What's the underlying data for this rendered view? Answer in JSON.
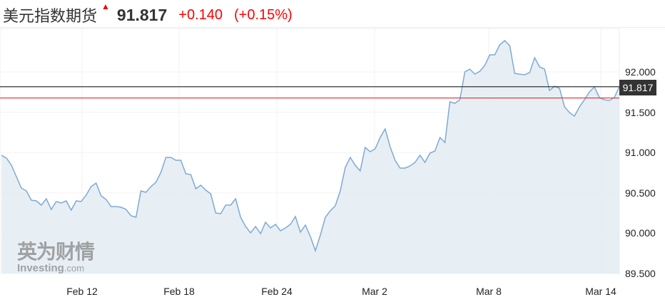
{
  "header": {
    "name": "美元指数期货",
    "arrow_icon": "up-arrow",
    "price": "91.817",
    "change": "+0.140",
    "change_pct": "(+0.15%)",
    "up_color": "#ff0000"
  },
  "watermark": {
    "cn": "英为财情",
    "en": "Investing",
    ".com": ".com"
  },
  "chart_data": {
    "type": "area",
    "x_ticks": [
      "Feb 12",
      "Feb 18",
      "Feb 24",
      "Mar 2",
      "Mar 8",
      "Mar 14"
    ],
    "y_ticks": [
      "92.000",
      "91.500",
      "91.000",
      "90.500",
      "90.000",
      "89.500"
    ],
    "ylim": [
      89.5,
      92.5
    ],
    "last_price": 91.817,
    "last_label": "91.817",
    "previous_close": 91.677,
    "line_color": "#7fa9d4",
    "fill_color": "#e3ecf3",
    "last_line_color": "#333333",
    "prev_close_color": "#e03030",
    "grid": true,
    "values": [
      90.966,
      90.931,
      90.843,
      90.701,
      90.56,
      90.525,
      90.41,
      90.401,
      90.348,
      90.428,
      90.295,
      90.392,
      90.375,
      90.401,
      90.286,
      90.401,
      90.392,
      90.472,
      90.578,
      90.622,
      90.463,
      90.419,
      90.33,
      90.33,
      90.322,
      90.295,
      90.216,
      90.198,
      90.525,
      90.507,
      90.578,
      90.631,
      90.754,
      90.94,
      90.94,
      90.905,
      90.905,
      90.737,
      90.728,
      90.551,
      90.595,
      90.534,
      90.489,
      90.251,
      90.242,
      90.348,
      90.348,
      90.428,
      90.198,
      90.083,
      90.004,
      90.083,
      89.995,
      90.136,
      90.065,
      90.11,
      90.03,
      90.065,
      90.11,
      90.207,
      90.012,
      90.101,
      89.959,
      89.783,
      89.977,
      90.198,
      90.277,
      90.339,
      90.525,
      90.816,
      90.94,
      90.843,
      90.772,
      91.064,
      91.011,
      91.046,
      91.187,
      91.293,
      91.072,
      90.905,
      90.807,
      90.807,
      90.834,
      90.878,
      90.966,
      90.878,
      90.993,
      91.019,
      91.187,
      91.125,
      91.629,
      91.611,
      91.655,
      92.0,
      92.035,
      91.973,
      92.009,
      92.08,
      92.212,
      92.212,
      92.336,
      92.389,
      92.327,
      91.982,
      91.973,
      91.965,
      91.991,
      92.177,
      92.062,
      92.035,
      91.77,
      91.823,
      91.797,
      91.567,
      91.496,
      91.452,
      91.567,
      91.655,
      91.753,
      91.814,
      91.682,
      91.655,
      91.647,
      91.682,
      91.817
    ]
  }
}
